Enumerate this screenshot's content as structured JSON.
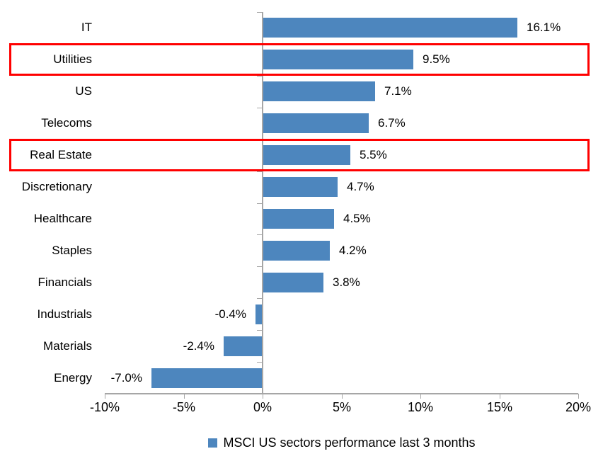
{
  "chart_data": {
    "type": "bar",
    "orientation": "horizontal",
    "categories": [
      "IT",
      "Utilities",
      "US",
      "Telecoms",
      "Real Estate",
      "Discretionary",
      "Healthcare",
      "Staples",
      "Financials",
      "Industrials",
      "Materials",
      "Energy"
    ],
    "values": [
      16.1,
      9.5,
      7.1,
      6.7,
      5.5,
      4.7,
      4.5,
      4.2,
      3.8,
      -0.4,
      -2.4,
      -7.0
    ],
    "value_labels": [
      "16.1%",
      "9.5%",
      "7.1%",
      "6.7%",
      "5.5%",
      "4.7%",
      "4.5%",
      "4.2%",
      "3.8%",
      "-0.4%",
      "-2.4%",
      "-7.0%"
    ],
    "highlighted_categories": [
      "Utilities",
      "Real Estate"
    ],
    "x_axis": {
      "tick_values": [
        -10,
        -5,
        0,
        5,
        10,
        15,
        20
      ],
      "tick_labels": [
        "-10%",
        "-5%",
        "0%",
        "5%",
        "10%",
        "15%",
        "20%"
      ],
      "xlim": [
        -10,
        20
      ]
    },
    "grid": "off",
    "legend": {
      "label": "MSCI US sectors performance last 3 months",
      "position": "bottom-center"
    },
    "colors": {
      "bar": "#4D86BE",
      "highlight_box": "#FF0000",
      "axis": "#A6A6A6",
      "text": "#000000",
      "background": "#FFFFFF"
    }
  }
}
